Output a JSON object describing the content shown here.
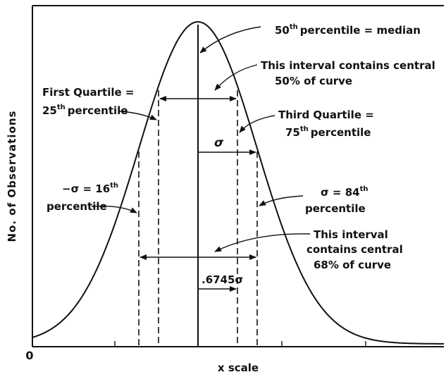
{
  "axis": {
    "y_label": "No. of Observations",
    "x_label": "x scale",
    "origin": "0"
  },
  "annotations": {
    "median": {
      "a": "50",
      "sup": "th",
      "b": "percentile = median"
    },
    "interval_50": [
      "This interval contains central",
      "50% of curve"
    ],
    "first_quartile": {
      "line1": "First Quartile =",
      "a": "25",
      "sup": "th",
      "b": "percentile"
    },
    "third_quartile": {
      "line1": "Third Quartile =",
      "a": "75",
      "sup": "th",
      "b": "percentile"
    },
    "sigma": "σ",
    "minus_sigma": {
      "a": "−σ = 16",
      "sup": "th",
      "line2": "percentile"
    },
    "plus_sigma": {
      "a": "σ = 84",
      "sup": "th",
      "line2": "percentile"
    },
    "interval_68": [
      "This interval",
      "contains central",
      "68% of curve"
    ],
    "quartile_deviation": ".6745σ"
  }
}
